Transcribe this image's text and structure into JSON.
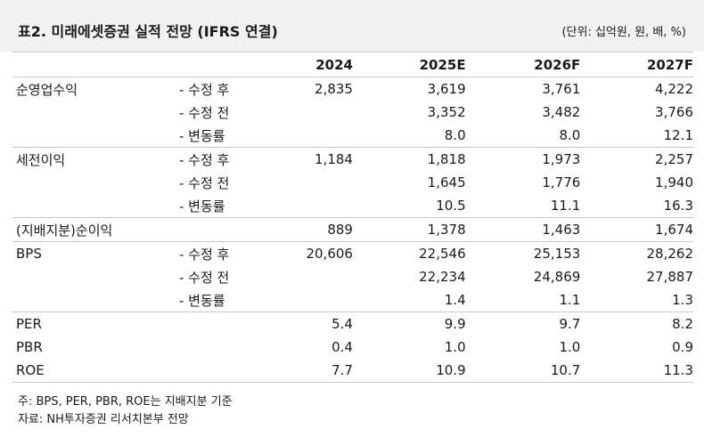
{
  "title": "표2. 미래에셋증권 실적 전망 (IFRS 연결)",
  "unit": "(단위: 십억원, 원, 배, %)",
  "columns": [
    "",
    "",
    "2024",
    "2025E",
    "2026F",
    "2027F"
  ],
  "rows": [
    {
      "label": "순영업수익",
      "sub": "- 수정 후",
      "v": [
        "2,835",
        "3,619",
        "3,761",
        "4,222"
      ]
    },
    {
      "label": "",
      "sub": "- 수정 전",
      "v": [
        "",
        "3,352",
        "3,482",
        "3,766"
      ]
    },
    {
      "label": "",
      "sub": "- 변동률",
      "v": [
        "",
        "8.0",
        "8.0",
        "12.1"
      ],
      "end": true
    },
    {
      "label": "세전이익",
      "sub": "- 수정 후",
      "v": [
        "1,184",
        "1,818",
        "1,973",
        "2,257"
      ]
    },
    {
      "label": "",
      "sub": "- 수정 전",
      "v": [
        "",
        "1,645",
        "1,776",
        "1,940"
      ]
    },
    {
      "label": "",
      "sub": "- 변동률",
      "v": [
        "",
        "10.5",
        "11.1",
        "16.3"
      ],
      "end": true
    },
    {
      "label": "(지배지분)순이익",
      "sub": "",
      "v": [
        "889",
        "1,378",
        "1,463",
        "1,674"
      ],
      "end": true
    },
    {
      "label": "BPS",
      "sub": "- 수정 후",
      "v": [
        "20,606",
        "22,546",
        "25,153",
        "28,262"
      ]
    },
    {
      "label": "",
      "sub": "- 수정 전",
      "v": [
        "",
        "22,234",
        "24,869",
        "27,887"
      ]
    },
    {
      "label": "",
      "sub": "- 변동률",
      "v": [
        "",
        "1.4",
        "1.1",
        "1.3"
      ],
      "end": true
    },
    {
      "label": "PER",
      "sub": "",
      "v": [
        "5.4",
        "9.9",
        "9.7",
        "8.2"
      ]
    },
    {
      "label": "PBR",
      "sub": "",
      "v": [
        "0.4",
        "1.0",
        "1.0",
        "0.9"
      ]
    },
    {
      "label": "ROE",
      "sub": "",
      "v": [
        "7.7",
        "10.9",
        "10.7",
        "11.3"
      ],
      "end": true
    }
  ],
  "notes": [
    "주: BPS, PER, PBR, ROE는 지배지분 기준",
    "자료: NH투자증권 리서치본부 전망"
  ]
}
